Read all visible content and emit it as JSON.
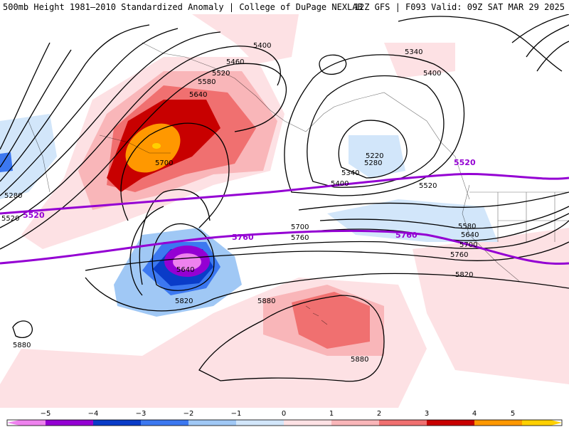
{
  "header": {
    "left_title": "500mb Height 1981–2010 Standardized Anomaly | College of DuPage NEXLAB",
    "right_title": "12Z GFS | F093 Valid: 09Z SAT MAR 29 2025"
  },
  "colors": {
    "neg5": "#ee82ee",
    "neg4": "#9400d3",
    "neg3": "#0a3cc8",
    "neg2": "#3c78f0",
    "neg1": "#a0c8f5",
    "neg05": "#d2e6fa",
    "pos05": "#fde1e4",
    "pos1": "#f9b6b9",
    "pos2": "#f07070",
    "pos3": "#c80000",
    "pos4": "#ff9800",
    "pos5": "#ffd000",
    "contour": "#000000",
    "highlight_contour": "#9400d3"
  },
  "contour_labels": [
    {
      "text": "5400"
    },
    {
      "text": "5460"
    },
    {
      "text": "5520"
    },
    {
      "text": "5580"
    },
    {
      "text": "5640"
    },
    {
      "text": "5700"
    },
    {
      "text": "5280"
    },
    {
      "text": "5520"
    },
    {
      "text": "5760"
    },
    {
      "text": "5640"
    },
    {
      "text": "5820"
    },
    {
      "text": "5880"
    },
    {
      "text": "5880"
    },
    {
      "text": "5880"
    },
    {
      "text": "5700"
    },
    {
      "text": "5760"
    },
    {
      "text": "5760"
    },
    {
      "text": "5340"
    },
    {
      "text": "5400"
    },
    {
      "text": "5220"
    },
    {
      "text": "5280"
    },
    {
      "text": "5340"
    },
    {
      "text": "5400"
    },
    {
      "text": "5520"
    },
    {
      "text": "5520"
    },
    {
      "text": "5580"
    },
    {
      "text": "5640"
    },
    {
      "text": "5700"
    },
    {
      "text": "5760"
    },
    {
      "text": "5820"
    },
    {
      "text": "5520"
    }
  ],
  "colorbar": {
    "ticks": [
      "−5",
      "−4",
      "−3",
      "−2",
      "−1",
      "0",
      "1",
      "2",
      "3",
      "4",
      "5"
    ]
  }
}
